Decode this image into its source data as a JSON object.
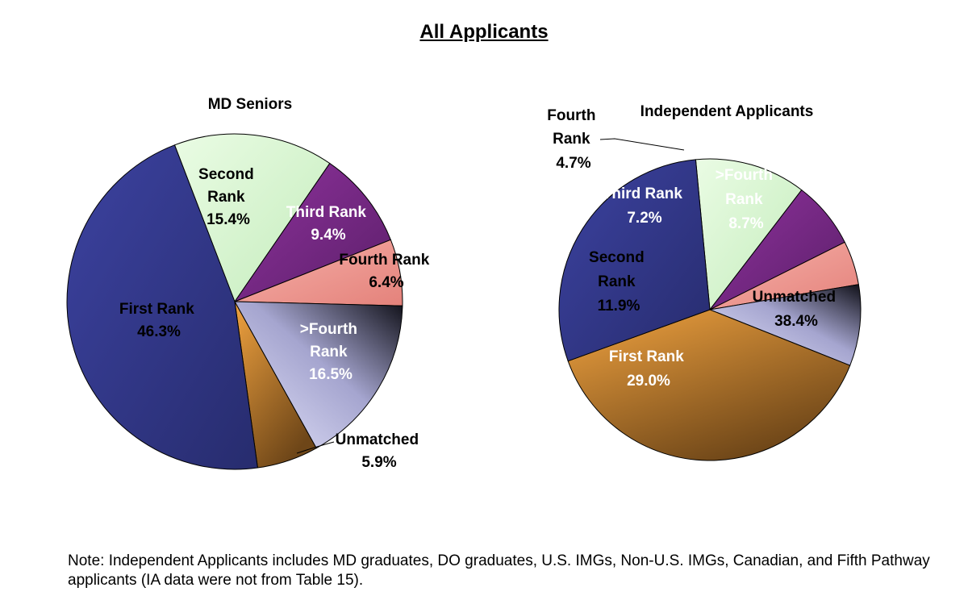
{
  "page_title": "All Applicants",
  "note": "Note: Independent Applicants includes MD graduates, DO graduates, U.S. IMGs, Non-U.S. IMGs, Canadian, and Fifth Pathway applicants (IA data were not from Table 15).",
  "colors": {
    "first_rank": "#343a8c",
    "second_rank": "#d9f6d2",
    "third_rank": "#7a2a86",
    "fourth_rank": "#ef9a93",
    "beyond_fourth": "#c8c8ea",
    "unmatched": "#b9732a"
  },
  "chart_data": [
    {
      "type": "pie",
      "title": "MD Seniors",
      "slices": [
        {
          "label": "First Rank",
          "value": 46.3,
          "display": "46.3%",
          "color_key": "first_rank"
        },
        {
          "label": "Second Rank",
          "value": 15.4,
          "display": "15.4%",
          "color_key": "second_rank"
        },
        {
          "label": "Third Rank",
          "value": 9.4,
          "display": "9.4%",
          "color_key": "third_rank"
        },
        {
          "label": "Fourth Rank",
          "value": 6.4,
          "display": "6.4%",
          "color_key": "fourth_rank"
        },
        {
          "label": ">Fourth Rank",
          "value": 16.5,
          "display": "16.5%",
          "color_key": "beyond_fourth"
        },
        {
          "label": "Unmatched",
          "value": 5.9,
          "display": "5.9%",
          "color_key": "unmatched"
        }
      ]
    },
    {
      "type": "pie",
      "title": "Independent Applicants",
      "slices": [
        {
          "label": "First Rank",
          "value": 29.0,
          "display": "29.0%",
          "color_key": "first_rank"
        },
        {
          "label": "Second Rank",
          "value": 11.9,
          "display": "11.9%",
          "color_key": "second_rank"
        },
        {
          "label": "Third Rank",
          "value": 7.2,
          "display": "7.2%",
          "color_key": "third_rank"
        },
        {
          "label": "Fourth Rank",
          "value": 4.7,
          "display": "4.7%",
          "color_key": "fourth_rank"
        },
        {
          "label": ">Fourth Rank",
          "value": 8.7,
          "display": "8.7%",
          "color_key": "beyond_fourth"
        },
        {
          "label": "Unmatched",
          "value": 38.4,
          "display": "38.4%",
          "color_key": "unmatched"
        }
      ]
    }
  ]
}
